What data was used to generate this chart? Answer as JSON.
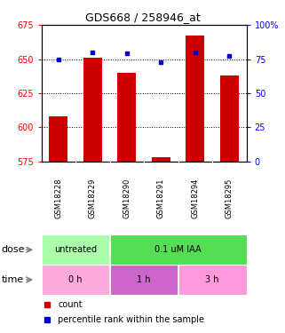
{
  "title": "GDS668 / 258946_at",
  "samples": [
    "GSM18228",
    "GSM18229",
    "GSM18290",
    "GSM18291",
    "GSM18294",
    "GSM18295"
  ],
  "counts": [
    608,
    651,
    640,
    578,
    667,
    638
  ],
  "percentiles": [
    75,
    80,
    79,
    73,
    80,
    77
  ],
  "ylim_left": [
    575,
    675
  ],
  "ylim_right": [
    0,
    100
  ],
  "yticks_left": [
    575,
    600,
    625,
    650,
    675
  ],
  "yticks_right": [
    0,
    25,
    50,
    75,
    100
  ],
  "bar_color": "#cc0000",
  "dot_color": "#0000cc",
  "bar_width": 0.55,
  "dose_untreated_color": "#aaffaa",
  "dose_iaa_color": "#55dd55",
  "time_0h_color": "#ffaadd",
  "time_1h_color": "#cc66cc",
  "time_3h_color": "#ff99dd",
  "sample_bg": "#c8c8c8",
  "bg_color": "#ffffff",
  "grid_yticks": [
    600,
    625,
    650
  ],
  "dose_label": "dose",
  "time_label": "time",
  "legend_count_label": "count",
  "legend_pct_label": "percentile rank within the sample"
}
